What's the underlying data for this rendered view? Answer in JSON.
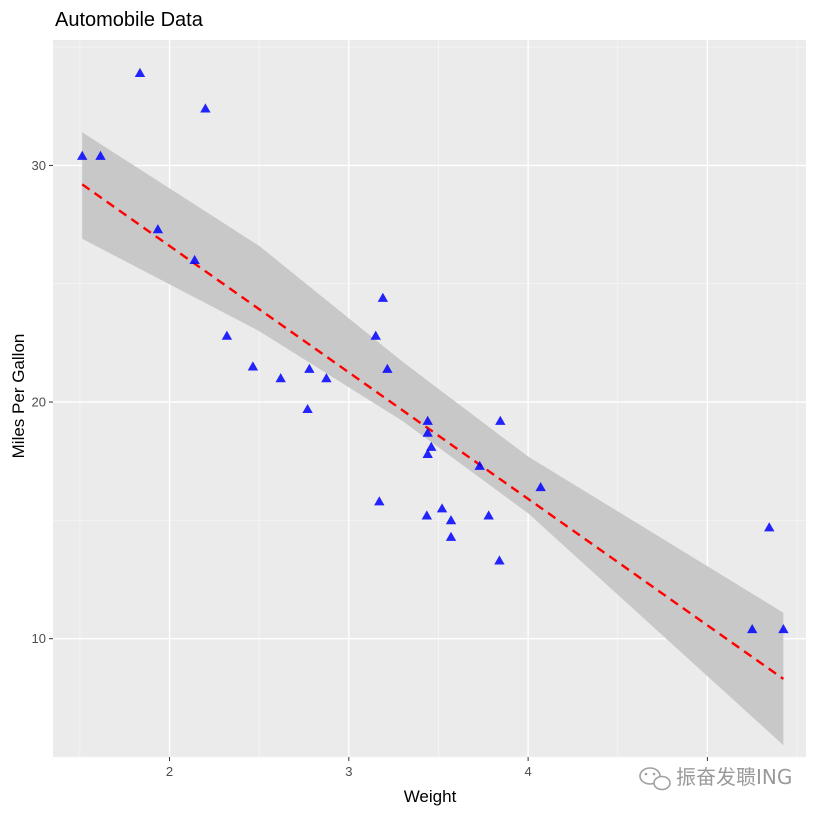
{
  "chart_data": {
    "type": "scatter",
    "title": "Automobile Data",
    "xlabel": "Weight",
    "ylabel": "Miles Per Gallon",
    "xlim": [
      1.35,
      5.55
    ],
    "ylim": [
      5.0,
      35.3
    ],
    "x_ticks": [
      2,
      3,
      4,
      5
    ],
    "x_tick_labels": [
      "2",
      "3",
      "4",
      ""
    ],
    "y_ticks": [
      10,
      20,
      30
    ],
    "y_tick_labels": [
      "10",
      "20",
      "30"
    ],
    "grid": true,
    "legend": "none",
    "panel_background": "#ebebeb",
    "point_color": "#0000ff",
    "point_shape": "triangle",
    "points": [
      {
        "x": 2.62,
        "y": 21.0
      },
      {
        "x": 2.875,
        "y": 21.0
      },
      {
        "x": 2.32,
        "y": 22.8
      },
      {
        "x": 3.215,
        "y": 21.4
      },
      {
        "x": 3.44,
        "y": 18.7
      },
      {
        "x": 3.46,
        "y": 18.1
      },
      {
        "x": 3.57,
        "y": 14.3
      },
      {
        "x": 3.19,
        "y": 24.4
      },
      {
        "x": 3.15,
        "y": 22.8
      },
      {
        "x": 3.44,
        "y": 19.2
      },
      {
        "x": 3.44,
        "y": 17.8
      },
      {
        "x": 4.07,
        "y": 16.4
      },
      {
        "x": 3.73,
        "y": 17.3
      },
      {
        "x": 3.78,
        "y": 15.2
      },
      {
        "x": 5.25,
        "y": 10.4
      },
      {
        "x": 5.424,
        "y": 10.4
      },
      {
        "x": 5.345,
        "y": 14.7
      },
      {
        "x": 2.2,
        "y": 32.4
      },
      {
        "x": 1.615,
        "y": 30.4
      },
      {
        "x": 1.835,
        "y": 33.9
      },
      {
        "x": 2.465,
        "y": 21.5
      },
      {
        "x": 3.52,
        "y": 15.5
      },
      {
        "x": 3.435,
        "y": 15.2
      },
      {
        "x": 3.84,
        "y": 13.3
      },
      {
        "x": 3.845,
        "y": 19.2
      },
      {
        "x": 1.935,
        "y": 27.3
      },
      {
        "x": 2.14,
        "y": 26.0
      },
      {
        "x": 1.513,
        "y": 30.4
      },
      {
        "x": 3.17,
        "y": 15.8
      },
      {
        "x": 2.77,
        "y": 19.7
      },
      {
        "x": 3.57,
        "y": 15.0
      },
      {
        "x": 2.78,
        "y": 21.4
      }
    ],
    "fit_line": {
      "color": "#ff0000",
      "style": "dashed",
      "intercept": 37.285,
      "slope": -5.344,
      "x_range": [
        1.513,
        5.424
      ]
    },
    "confidence_band": {
      "color": "#c8c8c8",
      "x": [
        1.513,
        2.5,
        3.3,
        4.0,
        5.424
      ],
      "lower": [
        26.9,
        23.0,
        19.2,
        15.3,
        5.5
      ],
      "upper": [
        31.4,
        26.6,
        21.7,
        17.7,
        11.1
      ]
    }
  },
  "watermark": {
    "text": "振奋发聩ING",
    "icon": "wechat-icon"
  }
}
